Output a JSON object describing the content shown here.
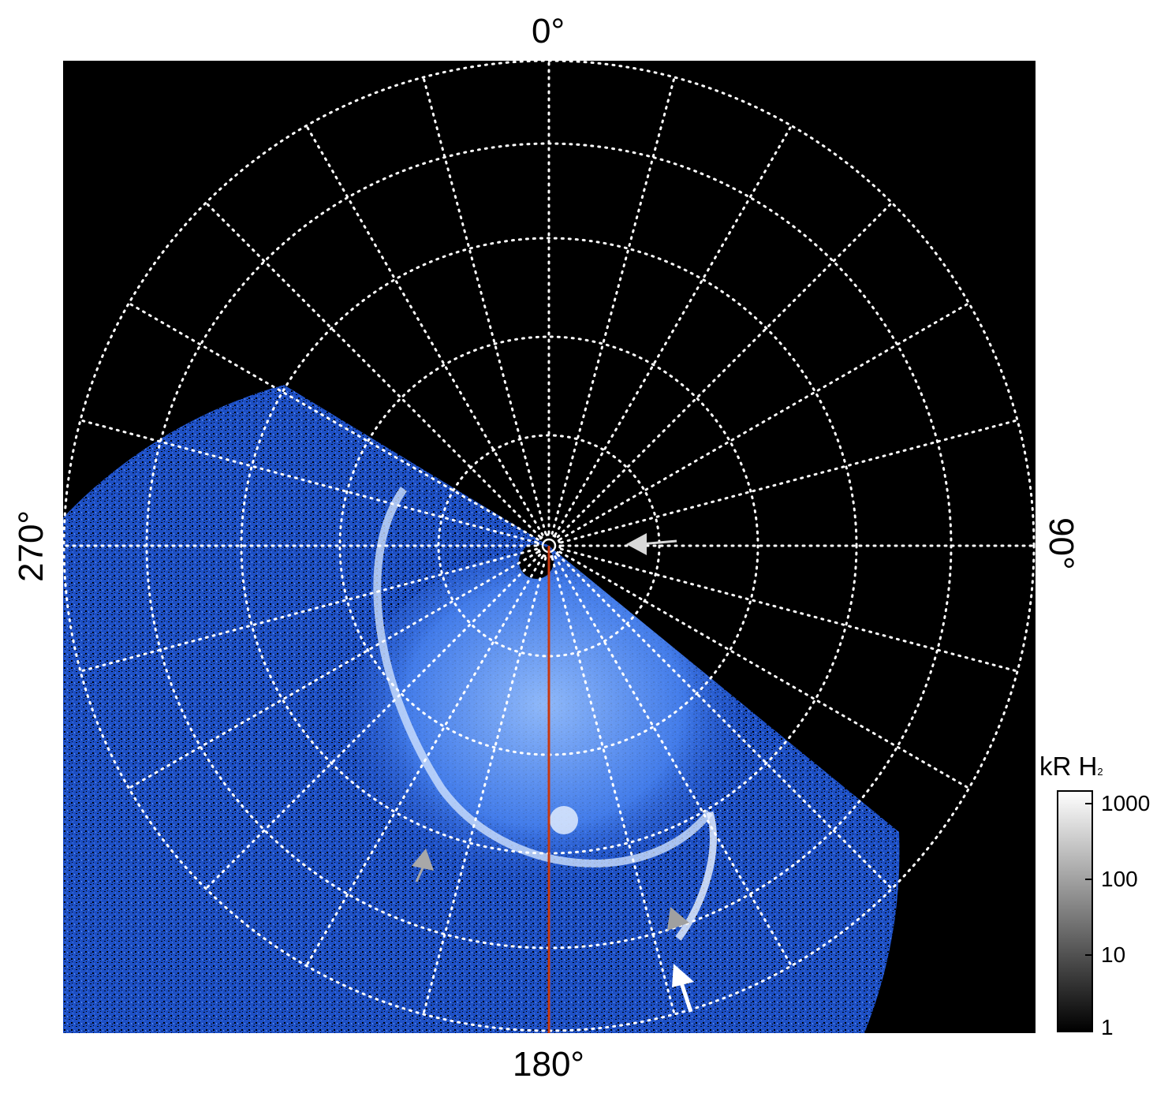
{
  "figure": {
    "azimuth_labels": {
      "top": "0°",
      "right": "90°",
      "bottom": "180°",
      "left": "270°"
    },
    "colorbar": {
      "title_main": "kR H",
      "title_sub": "2",
      "scale": "log",
      "ticks": [
        "1000",
        "100",
        "10",
        "1"
      ]
    },
    "colors": {
      "background": "#000000",
      "aurora": "#2f6ee8",
      "grid": "#ffffff",
      "meridian_line": "#c8380f",
      "arrow_white": "#ffffff",
      "arrow_gray": "#a0a0a0"
    },
    "markers": [
      {
        "name": "arrow-near-pole",
        "color": "gray-white"
      },
      {
        "name": "arrow-left-oval",
        "color": "gray"
      },
      {
        "name": "arrow-right-oval",
        "color": "gray"
      },
      {
        "name": "arrow-bottom",
        "color": "white"
      }
    ]
  }
}
